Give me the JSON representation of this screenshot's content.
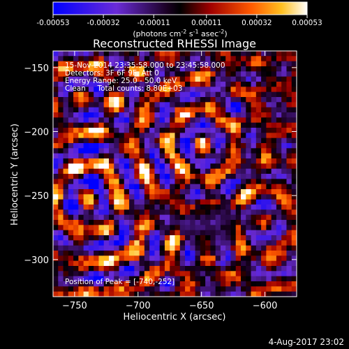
{
  "colorbar": {
    "ticks": [
      "-0.00053",
      "-0.00032",
      "-0.00011",
      "0.00011",
      "0.00032",
      "0.00053"
    ],
    "units": "(photons cm",
    "units_exp1": "-2",
    "units_mid": " s",
    "units_exp2": "-1",
    "units_end": " asec",
    "units_exp3": "-2",
    "units_close": ")"
  },
  "annotations": {
    "time_range": "15-Nov-2014 23:35:58.000 to 23:45:58.000",
    "detectors": "Detectors: 3F 6F 9F, Att 0",
    "energy": "Energy Range: 25.0 - 50.0 keV",
    "clean": "Clean     Total counts: 8.80E+03",
    "peak": "Position of Peak = [-740,-252]"
  },
  "footer": {
    "date": "4-Aug-2017 23:02"
  },
  "chart_data": {
    "type": "heatmap",
    "title": "Reconstructed RHESSI Image",
    "xlabel": "Heliocentric X (arcsec)",
    "ylabel": "Heliocentric Y (arcsec)",
    "xlim": [
      -767,
      -575
    ],
    "ylim": [
      -329,
      -137
    ],
    "xticks": [
      -750,
      -700,
      -650,
      -600
    ],
    "yticks": [
      -150,
      -200,
      -250,
      -300
    ],
    "xtick_labels": [
      "−750",
      "−700",
      "−650",
      "−600"
    ],
    "ytick_labels": [
      "−150",
      "−200",
      "−250",
      "−300"
    ],
    "zlim": [
      -0.00053,
      0.00053
    ],
    "colormap": [
      "#0000ff",
      "#5a22b2",
      "#1a0033",
      "#000000",
      "#8b0000",
      "#e62a00",
      "#ff8c00",
      "#ffd040",
      "#ffffff"
    ],
    "peak": [
      -740,
      -252
    ],
    "grid": false
  }
}
